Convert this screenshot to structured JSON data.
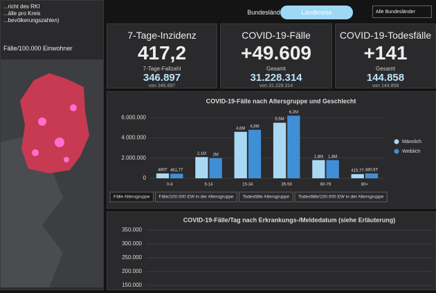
{
  "map": {
    "header_lines": [
      "...richt des RKI",
      "...älle pro Kreis",
      "...bevölkerungszahlen)"
    ],
    "legend_title": "Fälle/100.000 Einwohner"
  },
  "tabs": [
    "Bundesländer",
    "Landkreise"
  ],
  "region_select": "Alle Bundesländer",
  "kpis": [
    {
      "title": "7-Tage-Inzidenz",
      "value": "417,2",
      "sub_label": "7-Tage-Fallzahl",
      "sub_value": "346.897",
      "note": "von 346.897"
    },
    {
      "title": "COVID-19-Fälle",
      "value": "+49.609",
      "sub_label": "Gesamt",
      "sub_value": "31.228.314",
      "note": "von 31.228.314"
    },
    {
      "title": "COVID-19-Todesfälle",
      "value": "+141",
      "sub_label": "Gesamt",
      "sub_value": "144.858",
      "note": "von 144.858"
    }
  ],
  "chart_data": [
    {
      "type": "bar",
      "title": "COVID-19-Fälle nach Altersgruppe und Geschlecht",
      "categories": [
        "0-4",
        "5-14",
        "15-34",
        "35-59",
        "60-79",
        "80+"
      ],
      "series": [
        {
          "name": "Männlich",
          "color": "#a9d8f2",
          "values": [
            480000,
            2100000,
            4600000,
            5500000,
            1800000,
            415700
          ],
          "value_labels": [
            "480T",
            "2,1M",
            "4,6M",
            "5,5M",
            "1,8M",
            "415,7T"
          ]
        },
        {
          "name": "Weiblich",
          "color": "#3f8fd6",
          "values": [
            451700,
            2000000,
            4800000,
            6200000,
            1800000,
            480600
          ],
          "value_labels": [
            "451,7T",
            "2M",
            "4,8M",
            "6,2M",
            "1,8M",
            "480,6T"
          ]
        }
      ],
      "ylim": [
        0,
        6500000
      ],
      "yticks": [
        0,
        {
          "value": 2000000,
          "label": "2.000.000"
        },
        {
          "value": 4000000,
          "label": "4.000.000"
        },
        {
          "value": 6000000,
          "label": "6.000.000"
        }
      ],
      "grid": true,
      "buttons": [
        "Fälle Altersgruppe",
        "Fälle/100.000 EW in der Altersgruppe",
        "Todesfälle Altersgruppe",
        "Todesfälle/100.000 EW in der Altersgruppe"
      ]
    },
    {
      "type": "line",
      "title": "COVID-19-Fälle/Tag nach Erkrankungs-/Meldedatum (siehe Erläuterung)",
      "ylim": [
        150000,
        350000
      ],
      "yticks": [
        {
          "value": 350000,
          "label": "350.000"
        },
        {
          "value": 300000,
          "label": "300.000"
        },
        {
          "value": 250000,
          "label": "250.000"
        },
        {
          "value": 200000,
          "label": "200.000"
        },
        {
          "value": 150000,
          "label": "150.000"
        }
      ],
      "grid": true
    }
  ]
}
